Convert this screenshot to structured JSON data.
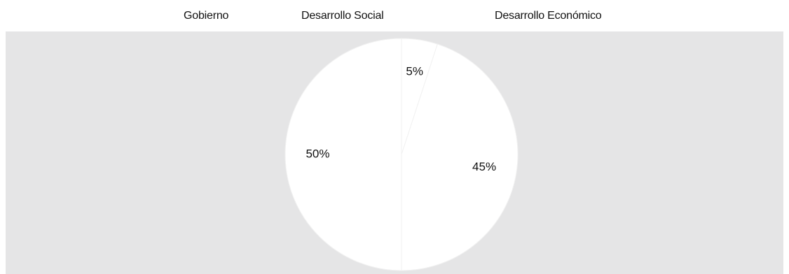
{
  "chart_data": {
    "type": "pie",
    "categories": [
      "Gobierno",
      "Desarrollo Social",
      "Desarrollo Económico"
    ],
    "values": [
      5,
      45,
      50
    ],
    "data_labels": [
      "5%",
      "45%",
      "50%"
    ],
    "legend_position": "top",
    "colors": {
      "slices": "#ffffff",
      "slice_border": "#f1f1f1",
      "plot_background": "#e5e5e6",
      "text": "#111111"
    }
  }
}
